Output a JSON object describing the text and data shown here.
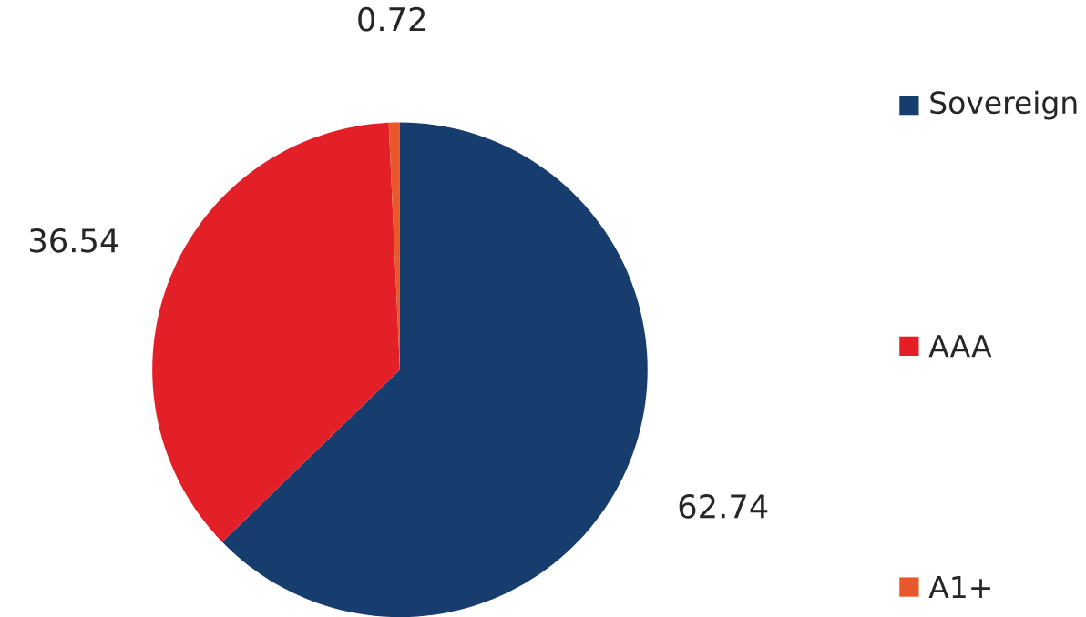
{
  "chart_data": {
    "type": "pie",
    "categories": [
      "Sovereign",
      "AAA",
      "A1+"
    ],
    "values": [
      62.74,
      36.54,
      0.72
    ],
    "colors": [
      "#173c6e",
      "#e32028",
      "#e8582a"
    ],
    "data_labels": true,
    "legend": "right"
  }
}
